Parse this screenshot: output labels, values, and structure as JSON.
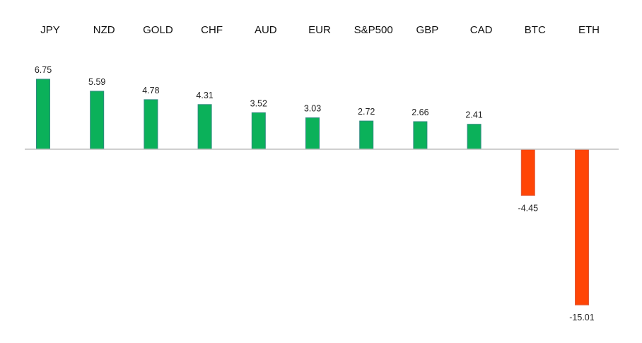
{
  "chart_data": {
    "type": "bar",
    "categories": [
      "JPY",
      "NZD",
      "GOLD",
      "CHF",
      "AUD",
      "EUR",
      "S&P500",
      "GBP",
      "CAD",
      "BTC",
      "ETH"
    ],
    "values": [
      6.75,
      5.59,
      4.78,
      4.31,
      3.52,
      3.03,
      2.72,
      2.66,
      2.41,
      -4.45,
      -15.01
    ],
    "value_labels": [
      "6.75",
      "5.59",
      "4.78",
      "4.31",
      "3.52",
      "3.03",
      "2.72",
      "2.66",
      "2.41",
      "-4.45",
      "-15.01"
    ],
    "title": "",
    "xlabel": "",
    "ylabel": "",
    "ylim": [
      -15.01,
      6.75
    ],
    "category_label_position": "top",
    "grid": false,
    "legend": "none",
    "colors": {
      "positive": "#0bb15a",
      "positive_edge": "#2d8a7e",
      "negative": "#ff4506",
      "negative_edge": "#e05a3a",
      "axis": "#bfbfbf"
    }
  }
}
